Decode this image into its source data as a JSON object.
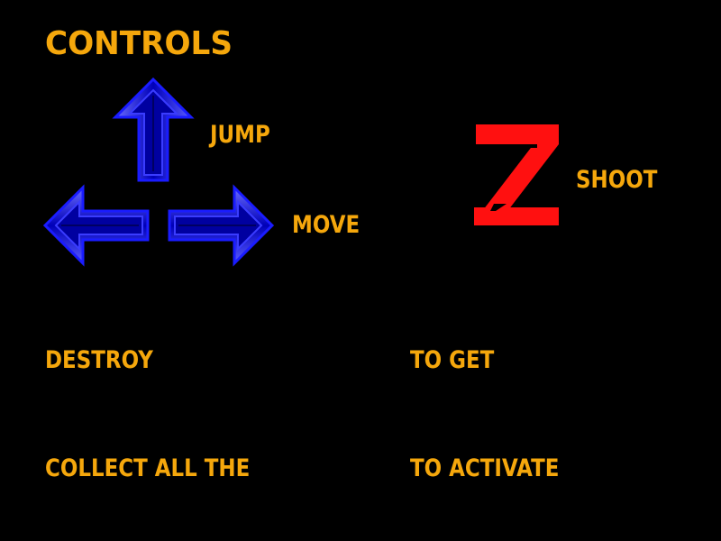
{
  "screen": {
    "title": "CONTROLS",
    "background_color": "#000000",
    "text_color": "#f5a70c"
  },
  "controls": {
    "jump_label": "JUMP",
    "move_label": "MOVE",
    "shoot_label": "SHOOT",
    "up_arrow_icon": "up-arrow-icon",
    "left_arrow_icon": "left-arrow-icon",
    "right_arrow_icon": "right-arrow-icon",
    "arrow_color": "#2a2cff",
    "shoot_key": "z-key-icon",
    "shoot_key_color": "#ff1010"
  },
  "instructions": {
    "destroy": "DESTROY",
    "to_get": "TO GET",
    "collect": "COLLECT ALL THE",
    "to_activate": "TO ACTIVATE"
  }
}
